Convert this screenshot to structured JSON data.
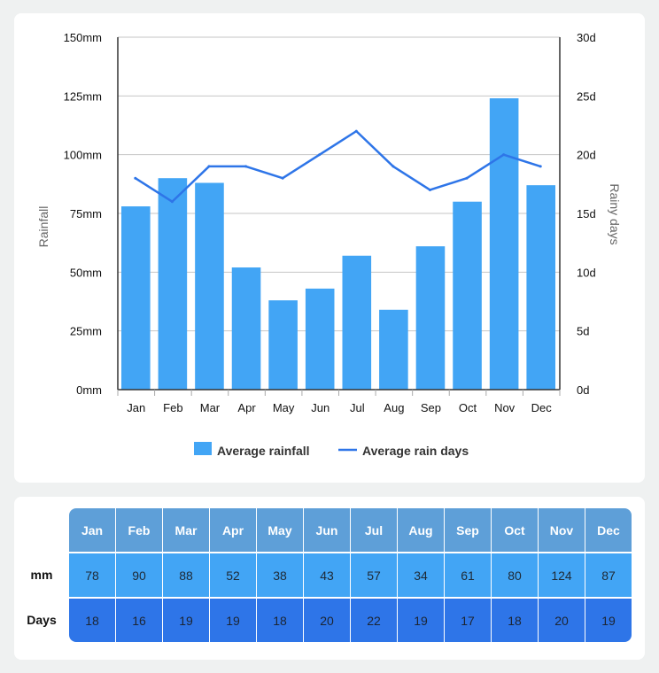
{
  "chart_data": {
    "type": "bar+line",
    "categories": [
      "Jan",
      "Feb",
      "Mar",
      "Apr",
      "May",
      "Jun",
      "Jul",
      "Aug",
      "Sep",
      "Oct",
      "Nov",
      "Dec"
    ],
    "series": [
      {
        "name": "Average rainfall",
        "type": "bar",
        "axis": "left",
        "color": "#42a5f5",
        "values": [
          78,
          90,
          88,
          52,
          38,
          43,
          57,
          34,
          61,
          80,
          124,
          87
        ]
      },
      {
        "name": "Average rain days",
        "type": "line",
        "axis": "right",
        "color": "#2e75e8",
        "values": [
          18,
          16,
          19,
          19,
          18,
          20,
          22,
          19,
          17,
          18,
          20,
          19
        ]
      }
    ],
    "ylabel": "Rainfall",
    "y2label": "Rainy days",
    "ylim": [
      0,
      150
    ],
    "y2lim": [
      0,
      30
    ],
    "yticks": [
      "0mm",
      "25mm",
      "50mm",
      "75mm",
      "100mm",
      "125mm",
      "150mm"
    ],
    "y2ticks": [
      "0d",
      "5d",
      "10d",
      "15d",
      "20d",
      "25d",
      "30d"
    ],
    "legend_position": "bottom",
    "grid": true
  },
  "table": {
    "row_labels": {
      "mm": "mm",
      "days": "Days"
    }
  },
  "colors": {
    "bar": "#42a5f5",
    "line": "#2e75e8",
    "header": "#5e9fd8",
    "mm_row": "#42a5f5",
    "days_row": "#2e75e8"
  }
}
